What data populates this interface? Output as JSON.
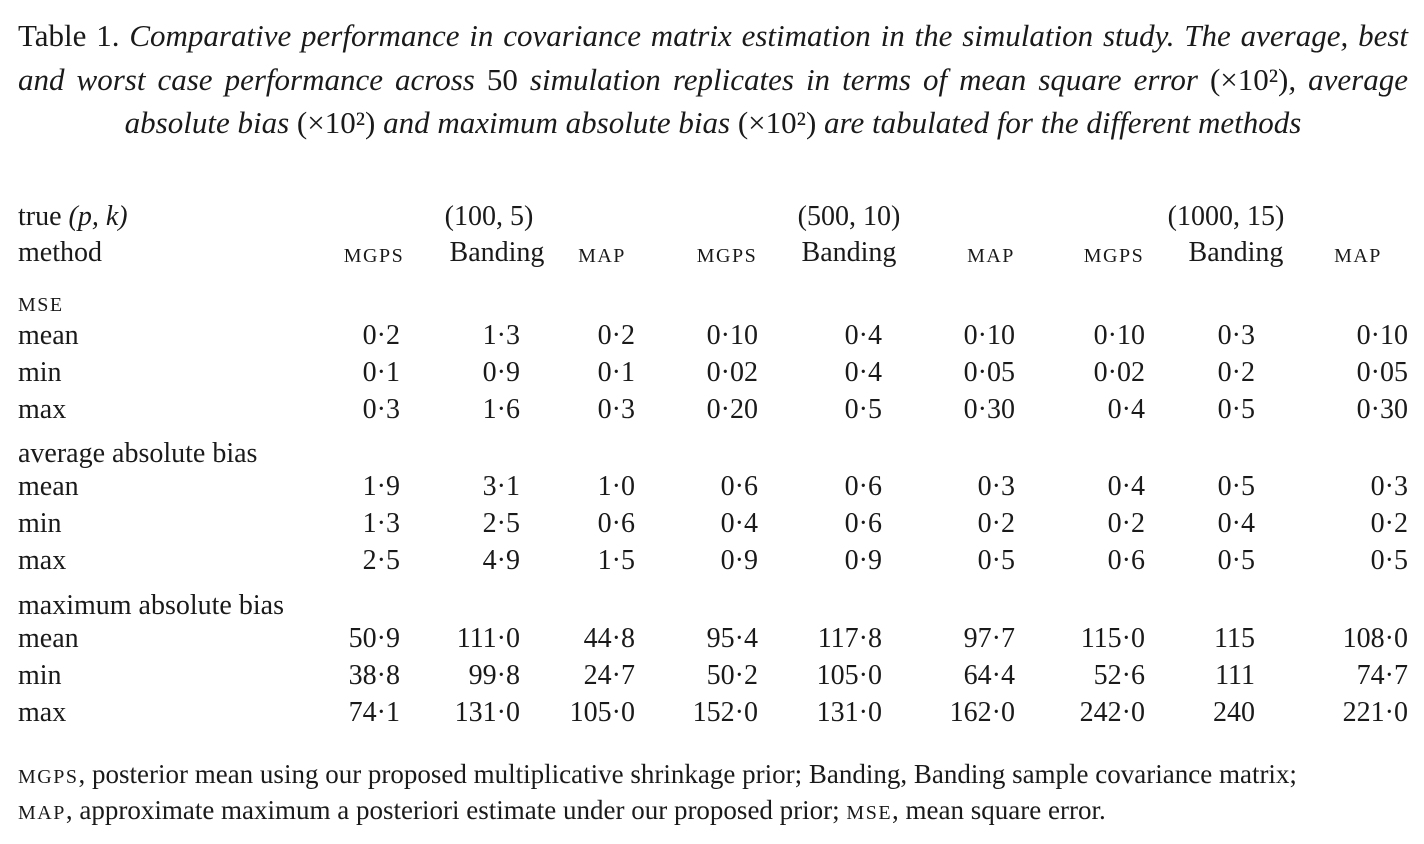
{
  "caption": {
    "label": "Table 1.",
    "text_before_1": " Comparative performance in covariance matrix estimation in the simulation study. The average, best and worst case performance across ",
    "replicates": "50",
    "text_before_2": " simulation replicates in terms of mean square error ",
    "factor": "(×10²)",
    "text_mid_1": ", average absolute bias ",
    "text_mid_2": " and maximum absolute bias ",
    "text_end": " are tabulated for the different methods"
  },
  "header": {
    "true_label": "true",
    "true_params": "(p, k)",
    "method_label": "method",
    "groups": [
      "(100, 5)",
      "(500, 10)",
      "(1000, 15)"
    ],
    "methods": [
      "MGPS",
      "Banding",
      "MAP",
      "MGPS",
      "Banding",
      "MAP",
      "MGPS",
      "Banding",
      "MAP"
    ]
  },
  "sections": [
    {
      "title": "MSE",
      "rows": [
        {
          "label": "mean",
          "values": [
            "0·2",
            "1·3",
            "0·2",
            "0·10",
            "0·4",
            "0·10",
            "0·10",
            "0·3",
            "0·10"
          ]
        },
        {
          "label": "min",
          "values": [
            "0·1",
            "0·9",
            "0·1",
            "0·02",
            "0·4",
            "0·05",
            "0·02",
            "0·2",
            "0·05"
          ]
        },
        {
          "label": "max",
          "values": [
            "0·3",
            "1·6",
            "0·3",
            "0·20",
            "0·5",
            "0·30",
            "0·4",
            "0·5",
            "0·30"
          ]
        }
      ]
    },
    {
      "title": "average absolute bias",
      "rows": [
        {
          "label": "mean",
          "values": [
            "1·9",
            "3·1",
            "1·0",
            "0·6",
            "0·6",
            "0·3",
            "0·4",
            "0·5",
            "0·3"
          ]
        },
        {
          "label": "min",
          "values": [
            "1·3",
            "2·5",
            "0·6",
            "0·4",
            "0·6",
            "0·2",
            "0·2",
            "0·4",
            "0·2"
          ]
        },
        {
          "label": "max",
          "values": [
            "2·5",
            "4·9",
            "1·5",
            "0·9",
            "0·9",
            "0·5",
            "0·6",
            "0·5",
            "0·5"
          ]
        }
      ]
    },
    {
      "title": "maximum absolute bias",
      "rows": [
        {
          "label": "mean",
          "values": [
            "50·9",
            "111·0",
            "44·8",
            "95·4",
            "117·8",
            "97·7",
            "115·0",
            "115",
            "108·0"
          ]
        },
        {
          "label": "min",
          "values": [
            "38·8",
            "99·8",
            "24·7",
            "50·2",
            "105·0",
            "64·4",
            "52·6",
            "111",
            "74·7"
          ]
        },
        {
          "label": "max",
          "values": [
            "74·1",
            "131·0",
            "105·0",
            "152·0",
            "131·0",
            "162·0",
            "242·0",
            "240",
            "221·0"
          ]
        }
      ]
    }
  ],
  "footnote": {
    "line1": [
      {
        "abbr": "MGPS",
        "text": ", posterior mean using our proposed multiplicative shrinkage prior; Banding, Banding sample covariance matrix;"
      }
    ],
    "line2": [
      {
        "abbr": "MAP",
        "text": ", approximate maximum a posteriori estimate under our proposed prior; "
      },
      {
        "abbr": "MSE",
        "text": ", mean square error."
      }
    ]
  }
}
